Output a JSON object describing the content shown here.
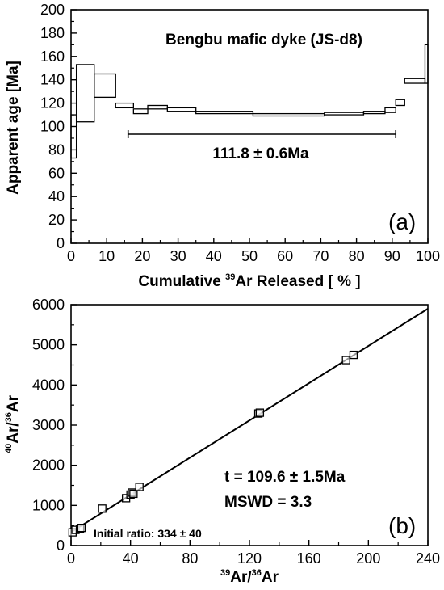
{
  "chart_data": [
    {
      "type": "line",
      "panel_label": "(a)",
      "title": "Bengbu mafic dyke (JS-d8)",
      "xlabel_pre": "Cumulative ",
      "xlabel_sup": "39",
      "xlabel_post": "Ar Released [ % ]",
      "ylabel": "Apparent age [Ma]",
      "xlim": [
        0,
        100
      ],
      "ylim": [
        0,
        200
      ],
      "xticks": [
        "0",
        "10",
        "20",
        "30",
        "40",
        "50",
        "60",
        "70",
        "80",
        "90",
        "100"
      ],
      "yticks": [
        "0",
        "20",
        "40",
        "60",
        "80",
        "100",
        "120",
        "140",
        "160",
        "180",
        "200"
      ],
      "plateau": {
        "x_start": 16,
        "x_end": 91,
        "label": "111.8 ± 0.6Ma"
      },
      "steps": [
        {
          "x0": 0,
          "x1": 1.5,
          "lo": 73,
          "hi": 110
        },
        {
          "x0": 1.5,
          "x1": 6.5,
          "lo": 104,
          "hi": 153
        },
        {
          "x0": 6.5,
          "x1": 12.5,
          "lo": 125,
          "hi": 145
        },
        {
          "x0": 12.5,
          "x1": 17.5,
          "lo": 116,
          "hi": 120
        },
        {
          "x0": 17.5,
          "x1": 21.5,
          "lo": 111,
          "hi": 115
        },
        {
          "x0": 21.5,
          "x1": 27,
          "lo": 115,
          "hi": 118
        },
        {
          "x0": 27,
          "x1": 35,
          "lo": 113,
          "hi": 116
        },
        {
          "x0": 35,
          "x1": 51,
          "lo": 111,
          "hi": 113
        },
        {
          "x0": 51,
          "x1": 71,
          "lo": 109,
          "hi": 111
        },
        {
          "x0": 71,
          "x1": 82,
          "lo": 110,
          "hi": 112
        },
        {
          "x0": 82,
          "x1": 88,
          "lo": 111,
          "hi": 113
        },
        {
          "x0": 88,
          "x1": 91,
          "lo": 112,
          "hi": 116
        },
        {
          "x0": 91,
          "x1": 93.5,
          "lo": 118,
          "hi": 123
        },
        {
          "x0": 93.5,
          "x1": 99.2,
          "lo": 137,
          "hi": 141
        },
        {
          "x0": 99.2,
          "x1": 100,
          "lo": 137,
          "hi": 170
        }
      ]
    },
    {
      "type": "scatter",
      "panel_label": "(b)",
      "xlabel_pre_sup": "39",
      "xlabel_mid": "Ar/",
      "xlabel_sup2": "36",
      "xlabel_post": "Ar",
      "ylabel_pre_sup": "40",
      "ylabel_mid": "Ar/",
      "ylabel_sup2": "36",
      "ylabel_post": "Ar",
      "xlim": [
        0,
        240
      ],
      "ylim": [
        0,
        6000
      ],
      "xticks": [
        "0",
        "40",
        "80",
        "120",
        "160",
        "200",
        "240"
      ],
      "yticks": [
        "0",
        "1000",
        "2000",
        "3000",
        "4000",
        "5000",
        "6000"
      ],
      "age_text": "t = 109.6 ± 1.5Ma",
      "mswd_text": "MSWD = 3.3",
      "initial_ratio_text": "Initial ratio: 334 ± 40",
      "isochron": {
        "x": [
          0,
          240
        ],
        "y": [
          334,
          5900
        ]
      },
      "points": [
        {
          "x": 1,
          "y": 330
        },
        {
          "x": 3,
          "y": 390
        },
        {
          "x": 6,
          "y": 420
        },
        {
          "x": 7,
          "y": 440
        },
        {
          "x": 21,
          "y": 920
        },
        {
          "x": 37,
          "y": 1180
        },
        {
          "x": 40,
          "y": 1270
        },
        {
          "x": 41,
          "y": 1320
        },
        {
          "x": 42,
          "y": 1290
        },
        {
          "x": 46,
          "y": 1460
        },
        {
          "x": 126,
          "y": 3290
        },
        {
          "x": 127,
          "y": 3310
        },
        {
          "x": 185,
          "y": 4620
        },
        {
          "x": 190,
          "y": 4750
        }
      ]
    }
  ]
}
